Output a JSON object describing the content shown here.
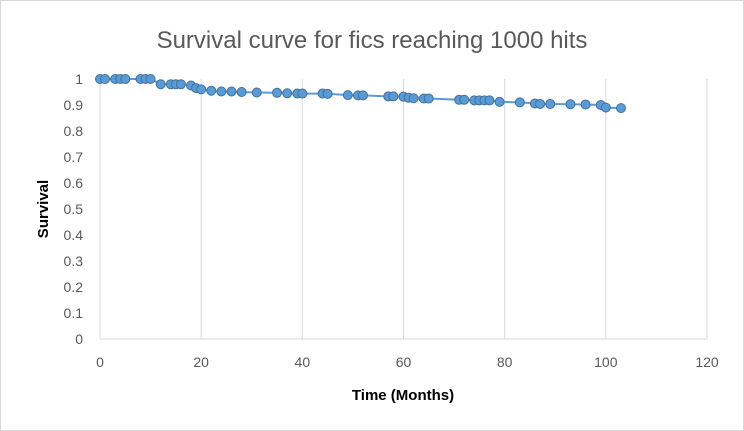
{
  "chart_data": {
    "type": "line",
    "title": "Survival curve for fics reaching 1000 hits",
    "xlabel": "Time (Months)",
    "ylabel": "Survival",
    "xlim": [
      0,
      120
    ],
    "ylim": [
      0,
      1
    ],
    "x_ticks": [
      "0",
      "20",
      "40",
      "60",
      "80",
      "100",
      "120"
    ],
    "y_ticks": [
      "0",
      "0.1",
      "0.2",
      "0.3",
      "0.4",
      "0.5",
      "0.6",
      "0.7",
      "0.8",
      "0.9",
      "1"
    ],
    "grid": "vertical",
    "legend": "none",
    "colors": {
      "line": "#5B9BD5",
      "marker_fill": "#5B9BD5",
      "marker_edge": "#41719C",
      "grid": "#d9d9d9"
    },
    "series": [
      {
        "x": [
          0,
          1,
          3,
          4,
          5,
          8,
          9,
          10,
          12,
          14,
          15,
          16,
          18,
          19,
          20,
          22,
          24,
          26,
          28,
          31,
          35,
          37,
          39,
          40,
          44,
          45,
          49,
          51,
          52,
          57,
          58,
          60,
          61,
          62,
          64,
          65,
          71,
          72,
          74,
          75,
          76,
          77,
          79,
          83,
          86,
          87,
          89,
          93,
          96,
          99,
          100,
          103
        ],
        "y": [
          1.0,
          1.0,
          1.0,
          1.0,
          1.0,
          1.0,
          1.0,
          1.0,
          0.98,
          0.98,
          0.98,
          0.98,
          0.975,
          0.965,
          0.96,
          0.955,
          0.952,
          0.952,
          0.95,
          0.948,
          0.947,
          0.945,
          0.944,
          0.944,
          0.944,
          0.943,
          0.938,
          0.937,
          0.937,
          0.933,
          0.933,
          0.932,
          0.928,
          0.926,
          0.925,
          0.925,
          0.92,
          0.92,
          0.918,
          0.918,
          0.918,
          0.918,
          0.912,
          0.91,
          0.906,
          0.904,
          0.904,
          0.903,
          0.902,
          0.9,
          0.89,
          0.888
        ]
      }
    ]
  }
}
